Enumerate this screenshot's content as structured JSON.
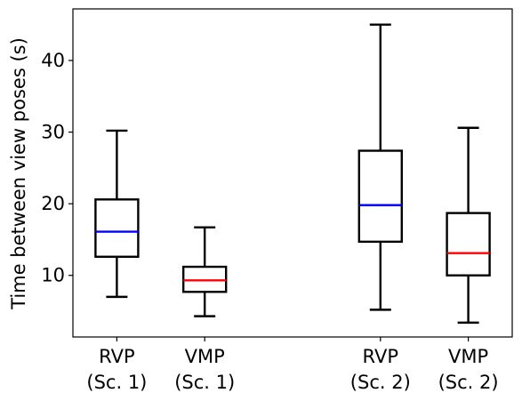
{
  "chart_data": {
    "type": "boxplot",
    "title": "",
    "xlabel": "",
    "ylabel": "Time between view poses (s)",
    "ylim": [
      1.4,
      47.2
    ],
    "yticks": [
      10,
      20,
      30,
      40
    ],
    "grid": false,
    "legend": "none",
    "boxes": [
      {
        "label_line1": "RVP",
        "label_line2": "(Sc. 1)",
        "x": 1,
        "whisker_low": 7.0,
        "q1": 12.6,
        "median": 16.1,
        "q3": 20.6,
        "whisker_high": 30.2,
        "median_color": "#0000ff"
      },
      {
        "label_line1": "VMP",
        "label_line2": "(Sc. 1)",
        "x": 2,
        "whisker_low": 4.3,
        "q1": 7.7,
        "median": 9.3,
        "q3": 11.2,
        "whisker_high": 16.7,
        "median_color": "#ff0000"
      },
      {
        "label_line1": "RVP",
        "label_line2": "(Sc. 2)",
        "x": 4,
        "whisker_low": 5.2,
        "q1": 14.7,
        "median": 19.8,
        "q3": 27.4,
        "whisker_high": 45.0,
        "median_color": "#0000ff"
      },
      {
        "label_line1": "VMP",
        "label_line2": "(Sc. 2)",
        "x": 5,
        "whisker_low": 3.4,
        "q1": 10.0,
        "median": 13.1,
        "q3": 18.7,
        "whisker_high": 30.6,
        "median_color": "#ff0000"
      }
    ],
    "xlim": [
      0.5,
      5.5
    ]
  }
}
